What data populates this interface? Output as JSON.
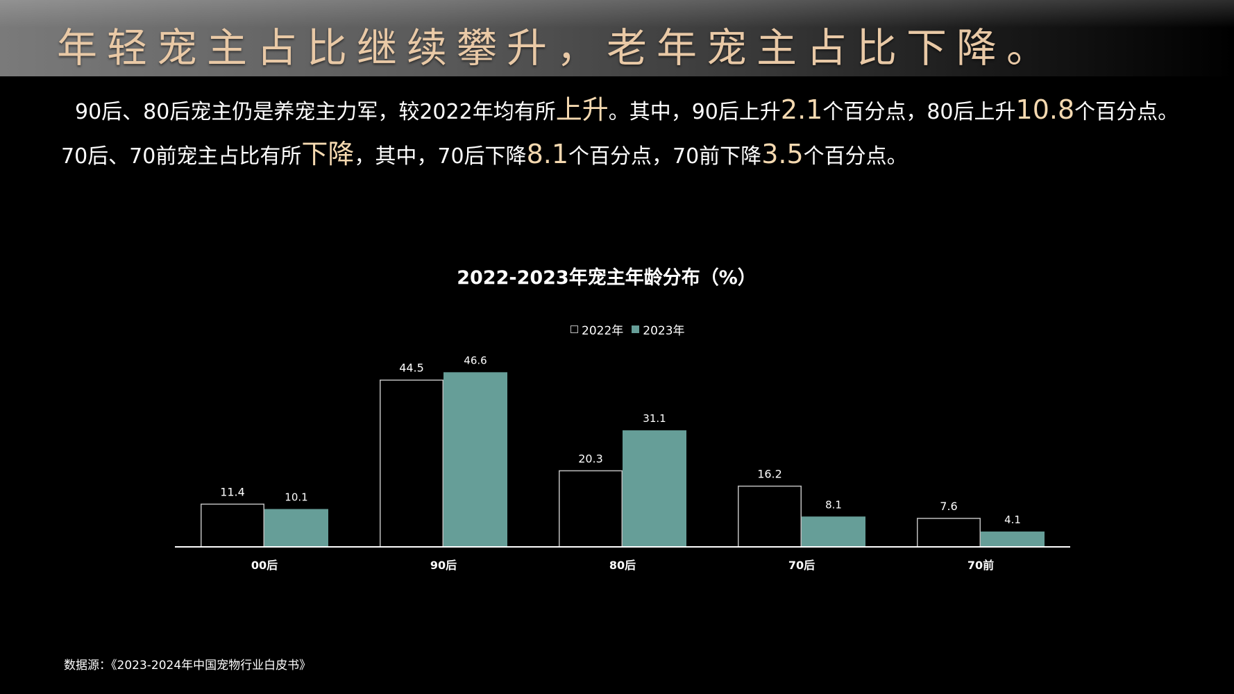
{
  "header": {
    "title": "年轻宠主占比继续攀升，老年宠主占比下降。"
  },
  "summary": {
    "line1": [
      {
        "text": "90后、80后宠主仍是养宠主力军，较2022年均有所",
        "hl": false
      },
      {
        "text": "上升",
        "hl": true
      },
      {
        "text": "。其中，90后上升",
        "hl": false
      },
      {
        "text": "2.1",
        "hl": true
      },
      {
        "text": "个百分点，80后上升",
        "hl": false
      },
      {
        "text": "10.8",
        "hl": true
      },
      {
        "text": "个百分点。",
        "hl": false
      }
    ],
    "line2": [
      {
        "text": "70后、70前宠主占比有所",
        "hl": false
      },
      {
        "text": "下降",
        "hl": true
      },
      {
        "text": "，其中，70后下降",
        "hl": false
      },
      {
        "text": "8.1",
        "hl": true
      },
      {
        "text": "个百分点，70前下降",
        "hl": false
      },
      {
        "text": "3.5",
        "hl": true
      },
      {
        "text": "个百分点。",
        "hl": false
      }
    ]
  },
  "colors": {
    "highlight": "#f5d9b0",
    "title_gold": "#e9c9a6",
    "series_2022_stroke": "#bfbfbf",
    "series_2023_fill": "#669e98"
  },
  "chart_data": {
    "type": "bar",
    "title": "2022-2023年宠主年龄分布（%）",
    "categories": [
      "00后",
      "90后",
      "80后",
      "70后",
      "70前"
    ],
    "series": [
      {
        "name": "2022年",
        "values": [
          11.4,
          44.5,
          20.3,
          16.2,
          7.6
        ]
      },
      {
        "name": "2023年",
        "values": [
          10.1,
          46.6,
          31.1,
          8.1,
          4.1
        ]
      }
    ],
    "ylim": [
      0,
      50
    ],
    "grid": false,
    "legend_position": "top-center",
    "data_labels": true
  },
  "source": "数据源：《2023-2024年中国宠物行业白皮书》"
}
